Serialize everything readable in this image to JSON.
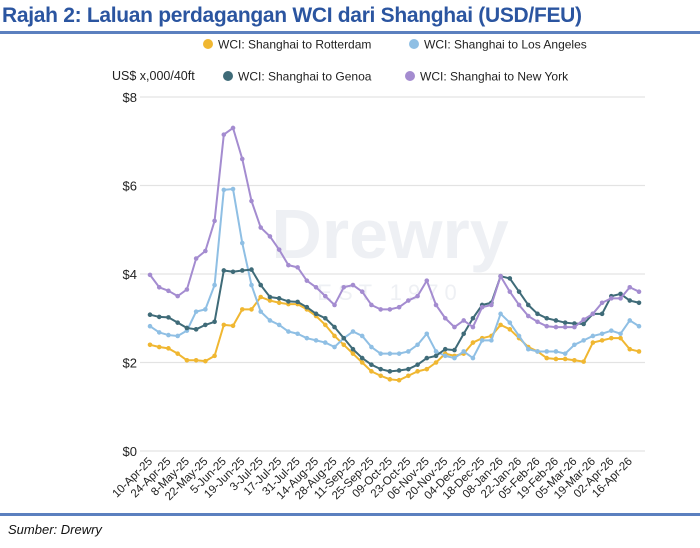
{
  "title": "Rajah 2: Laluan perdagangan WCI dari Shanghai (USD/FEU)",
  "source": "Sumber: Drewry",
  "watermark": {
    "brand": "Drewry",
    "est": "EST 1970"
  },
  "chart_data": {
    "type": "line",
    "title": "Rajah 2: Laluan perdagangan WCI dari Shanghai (USD/FEU)",
    "ylabel": "US$ x,000/40ft",
    "xlabel": "",
    "ylim": [
      0,
      8
    ],
    "yticks": [
      0,
      2,
      4,
      6,
      8
    ],
    "ytick_labels": [
      "$0",
      "$2",
      "$4",
      "$6",
      "$8"
    ],
    "grid": true,
    "legend_position": "top",
    "x_tick_labels": [
      "10-Apr-25",
      "24-Apr-25",
      "8-May-25",
      "22-May-25",
      "5-Jun-25",
      "19-Jun-25",
      "3-Jul-25",
      "17-Jul-25",
      "31-Jul-25",
      "14-Aug-25",
      "28-Aug-25",
      "11-Sep-25",
      "25-Sep-25",
      "09-Oct-25",
      "23-Oct-25",
      "06-Nov-25",
      "20-Nov-25",
      "04-Dec-25",
      "18-Dec-25",
      "08-Jan-26",
      "22-Jan-26",
      "05-Feb-26",
      "19-Feb-26",
      "05-Mar-26",
      "19-Mar-26",
      "02-Apr-26",
      "16-Apr-26"
    ],
    "series": [
      {
        "name": "WCI: Shanghai to Rotterdam",
        "color": "#f0b731",
        "values": [
          2.4,
          2.35,
          2.32,
          2.2,
          2.05,
          2.05,
          2.03,
          2.15,
          2.85,
          2.83,
          3.2,
          3.2,
          3.48,
          3.4,
          3.35,
          3.32,
          3.32,
          3.2,
          3.05,
          2.85,
          2.6,
          2.4,
          2.2,
          2.0,
          1.8,
          1.7,
          1.62,
          1.6,
          1.7,
          1.8,
          1.85,
          2.0,
          2.2,
          2.15,
          2.2,
          2.45,
          2.55,
          2.6,
          2.85,
          2.75,
          2.55,
          2.35,
          2.25,
          2.1,
          2.08,
          2.08,
          2.05,
          2.02,
          2.45,
          2.5,
          2.55,
          2.55,
          2.3,
          2.25
        ]
      },
      {
        "name": "WCI: Shanghai to Los Angeles",
        "color": "#8fbfe4",
        "values": [
          2.82,
          2.68,
          2.62,
          2.6,
          2.72,
          3.15,
          3.2,
          3.75,
          5.9,
          5.92,
          4.7,
          3.75,
          3.15,
          2.95,
          2.85,
          2.7,
          2.65,
          2.55,
          2.5,
          2.45,
          2.35,
          2.55,
          2.7,
          2.6,
          2.35,
          2.2,
          2.2,
          2.2,
          2.25,
          2.4,
          2.65,
          2.25,
          2.15,
          2.1,
          2.25,
          2.1,
          2.5,
          2.5,
          3.1,
          2.9,
          2.6,
          2.3,
          2.25,
          2.25,
          2.25,
          2.2,
          2.4,
          2.5,
          2.6,
          2.65,
          2.72,
          2.65,
          2.95,
          2.82
        ]
      },
      {
        "name": "WCI: Shanghai to Genoa",
        "color": "#3f6b78",
        "values": [
          3.08,
          3.03,
          3.02,
          2.9,
          2.78,
          2.75,
          2.85,
          2.92,
          4.08,
          4.05,
          4.08,
          4.1,
          3.75,
          3.48,
          3.45,
          3.38,
          3.37,
          3.25,
          3.1,
          3.0,
          2.8,
          2.55,
          2.3,
          2.1,
          1.95,
          1.85,
          1.8,
          1.82,
          1.85,
          1.95,
          2.1,
          2.15,
          2.3,
          2.28,
          2.65,
          3.0,
          3.3,
          3.35,
          3.95,
          3.9,
          3.6,
          3.3,
          3.1,
          3.0,
          2.95,
          2.9,
          2.88,
          2.87,
          3.1,
          3.1,
          3.5,
          3.55,
          3.4,
          3.35
        ]
      },
      {
        "name": "WCI: Shanghai to New York",
        "color": "#a48cd0",
        "values": [
          3.98,
          3.7,
          3.62,
          3.5,
          3.65,
          4.35,
          4.52,
          5.2,
          7.15,
          7.3,
          6.6,
          5.65,
          5.05,
          4.85,
          4.55,
          4.2,
          4.15,
          3.85,
          3.7,
          3.5,
          3.3,
          3.7,
          3.75,
          3.6,
          3.3,
          3.2,
          3.2,
          3.25,
          3.4,
          3.5,
          3.85,
          3.3,
          3.0,
          2.8,
          2.95,
          2.8,
          3.25,
          3.3,
          3.95,
          3.6,
          3.3,
          3.05,
          2.92,
          2.82,
          2.8,
          2.8,
          2.8,
          2.97,
          3.1,
          3.35,
          3.45,
          3.45,
          3.7,
          3.6
        ]
      }
    ]
  }
}
